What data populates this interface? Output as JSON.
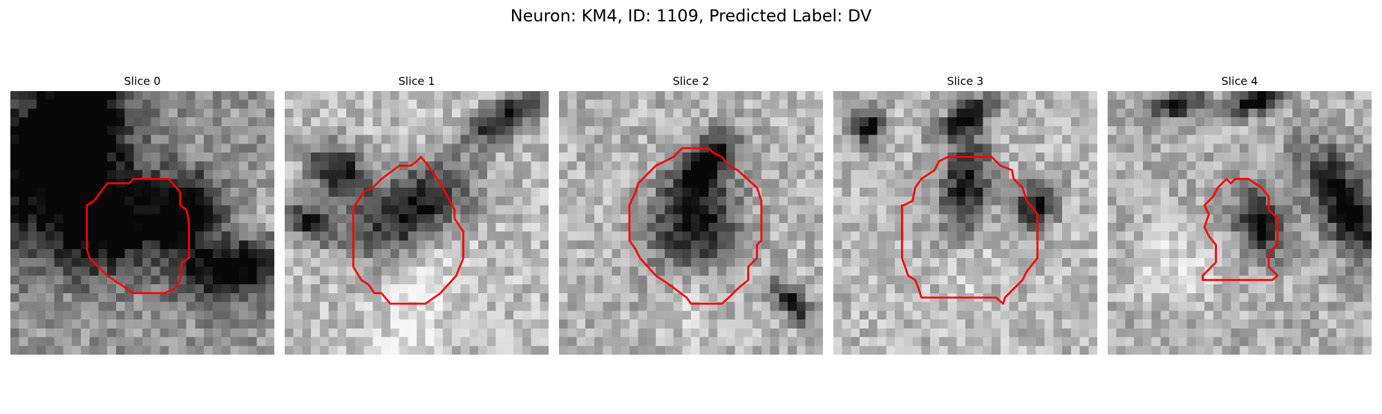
{
  "figure": {
    "title": "Neuron: KM4, ID: 1109, Predicted Label: DV"
  },
  "colors": {
    "contour": "#ff0000",
    "background": "#ffffff"
  },
  "slices": [
    {
      "label": "Slice 0"
    },
    {
      "label": "Slice 1"
    },
    {
      "label": "Slice 2"
    },
    {
      "label": "Slice 3"
    },
    {
      "label": "Slice 4"
    }
  ]
}
